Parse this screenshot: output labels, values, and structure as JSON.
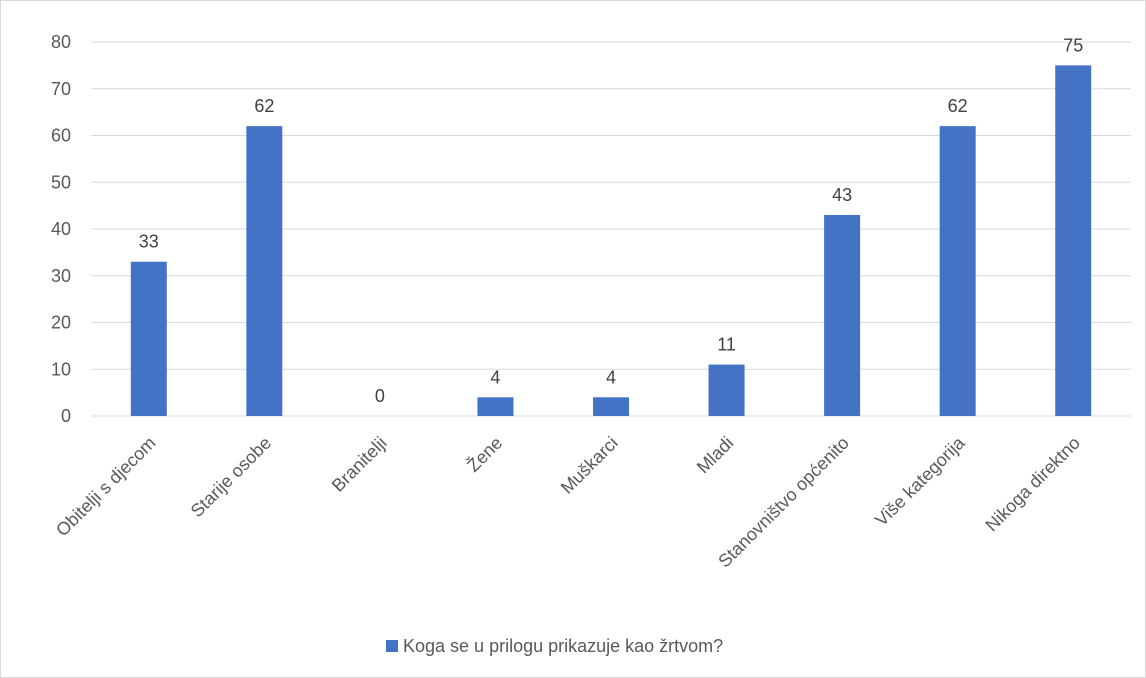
{
  "chart_data": {
    "type": "bar",
    "categories": [
      "Obitelji s djecom",
      "Starije osobe",
      "Branitelji",
      "Žene",
      "Muškarci",
      "Mladi",
      "Stanovništvo općenito",
      "Više kategorija",
      "Nikoga direktno"
    ],
    "series": [
      {
        "name": "Koga se u prilogu prikazuje kao žrtvom?",
        "values": [
          33,
          62,
          0,
          4,
          4,
          11,
          43,
          62,
          75
        ],
        "color": "#4472c4"
      }
    ],
    "ylim": [
      0,
      80
    ],
    "yticks": [
      0,
      10,
      20,
      30,
      40,
      50,
      60,
      70,
      80
    ],
    "grid": true,
    "legend": "bottom",
    "data_labels": true,
    "title": "",
    "xlabel": "",
    "ylabel": ""
  }
}
